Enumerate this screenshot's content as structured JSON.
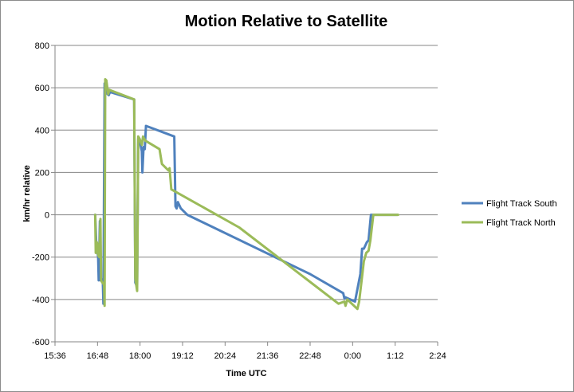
{
  "chart_data": {
    "type": "line",
    "title": "Motion Relative to Satellite",
    "xlabel": "Time UTC",
    "ylabel": "km/hr relative",
    "x_ticks": [
      "15:36",
      "16:48",
      "18:00",
      "19:12",
      "20:24",
      "21:36",
      "22:48",
      "0:00",
      "1:12",
      "2:24"
    ],
    "y_ticks": [
      "800",
      "600",
      "400",
      "200",
      "0",
      "-200",
      "-400",
      "-600"
    ],
    "xlim": [
      "15:36",
      "2:24"
    ],
    "ylim": [
      -600,
      800
    ],
    "grid": "horizontal",
    "legend": "right",
    "series": [
      {
        "name": "Flight Track South",
        "color": "#4f81bd",
        "points": [
          [
            "16:44",
            0
          ],
          [
            "16:46",
            -150
          ],
          [
            "16:47",
            -160
          ],
          [
            "16:49",
            -200
          ],
          [
            "16:50",
            -310
          ],
          [
            "16:52",
            -30
          ],
          [
            "16:53",
            -310
          ],
          [
            "16:55",
            -305
          ],
          [
            "16:57",
            -320
          ],
          [
            "16:58",
            -420
          ],
          [
            "17:00",
            620
          ],
          [
            "17:03",
            600
          ],
          [
            "17:05",
            570
          ],
          [
            "17:07",
            565
          ],
          [
            "17:09",
            580
          ],
          [
            "17:50",
            545
          ],
          [
            "17:52",
            -320
          ],
          [
            "17:55",
            -340
          ],
          [
            "17:57",
            360
          ],
          [
            "17:59",
            360
          ],
          [
            "18:03",
            300
          ],
          [
            "18:04",
            200
          ],
          [
            "18:06",
            320
          ],
          [
            "18:08",
            310
          ],
          [
            "18:10",
            420
          ],
          [
            "18:58",
            370
          ],
          [
            "19:00",
            40
          ],
          [
            "19:02",
            30
          ],
          [
            "19:04",
            60
          ],
          [
            "19:09",
            30
          ],
          [
            "19:20",
            0
          ],
          [
            "22:48",
            -280
          ],
          [
            "23:44",
            -370
          ],
          [
            "23:46",
            -395
          ],
          [
            "23:48",
            -390
          ],
          [
            "0:04",
            -410
          ],
          [
            "0:13",
            -280
          ],
          [
            "0:16",
            -160
          ],
          [
            "0:19",
            -160
          ],
          [
            "0:24",
            -130
          ],
          [
            "0:27",
            -120
          ],
          [
            "0:31",
            0
          ],
          [
            "1:16",
            0
          ]
        ]
      },
      {
        "name": "Flight Track North",
        "color": "#9bbb59",
        "points": [
          [
            "16:44",
            0
          ],
          [
            "16:45",
            -180
          ],
          [
            "16:47",
            -130
          ],
          [
            "16:48",
            -140
          ],
          [
            "16:49",
            -190
          ],
          [
            "16:51",
            -200
          ],
          [
            "16:53",
            -20
          ],
          [
            "16:54",
            -310
          ],
          [
            "16:56",
            -320
          ],
          [
            "16:59",
            -330
          ],
          [
            "17:00",
            -430
          ],
          [
            "17:01",
            640
          ],
          [
            "17:03",
            635
          ],
          [
            "17:06",
            570
          ],
          [
            "17:08",
            590
          ],
          [
            "17:50",
            545
          ],
          [
            "17:52",
            -300
          ],
          [
            "17:55",
            -360
          ],
          [
            "17:57",
            370
          ],
          [
            "17:59",
            360
          ],
          [
            "18:03",
            330
          ],
          [
            "18:05",
            370
          ],
          [
            "18:09",
            350
          ],
          [
            "18:33",
            310
          ],
          [
            "18:37",
            240
          ],
          [
            "18:48",
            210
          ],
          [
            "18:50",
            220
          ],
          [
            "18:53",
            120
          ],
          [
            "20:48",
            -60
          ],
          [
            "23:36",
            -420
          ],
          [
            "23:46",
            -410
          ],
          [
            "23:48",
            -430
          ],
          [
            "23:51",
            -400
          ],
          [
            "0:08",
            -445
          ],
          [
            "0:11",
            -410
          ],
          [
            "0:19",
            -220
          ],
          [
            "0:23",
            -180
          ],
          [
            "0:27",
            -170
          ],
          [
            "0:30",
            -120
          ],
          [
            "0:35",
            0
          ],
          [
            "1:17",
            0
          ]
        ]
      }
    ]
  }
}
